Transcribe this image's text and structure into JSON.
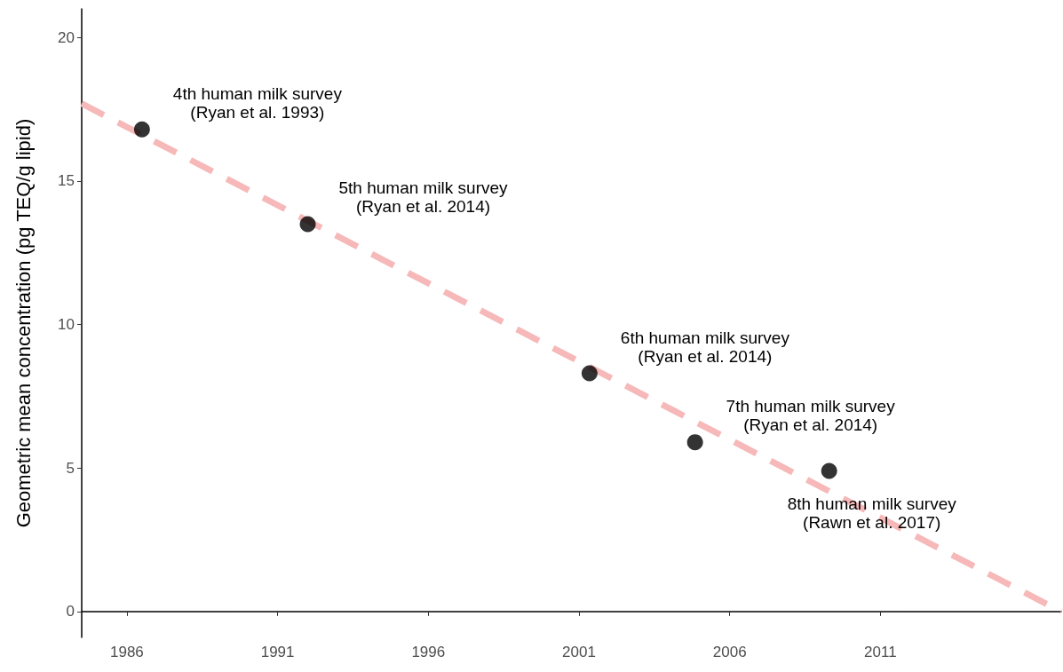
{
  "chart_data": {
    "type": "scatter",
    "ylabel": "Geometric mean concentration (pg TEQ/g lipid)",
    "series": [
      {
        "marker": "circle",
        "color": "#000000",
        "x": [
          1986.5,
          1992.0,
          2001.35,
          2004.85,
          2009.3
        ],
        "values": [
          16.8,
          13.5,
          8.3,
          5.9,
          4.9
        ]
      },
      {
        "type": "line",
        "color": "#f6b8b8",
        "line_style": "dashed",
        "x": [
          1984.5,
          2017
        ],
        "values": [
          17.7,
          0
        ]
      }
    ],
    "xlim": [
      1984.5,
      2017
    ],
    "xticks": [
      1986,
      1991,
      1996,
      2001,
      2006,
      2011
    ],
    "ylim": [
      -0.9,
      21
    ],
    "yticks": [
      0,
      5,
      10,
      15,
      20
    ],
    "grid": false,
    "annotations": [
      {
        "text": "4th human milk survey\n(Ryan et al. 1993)",
        "x": 1986.5,
        "y": 16.8
      },
      {
        "text": "5th human milk survey\n(Ryan et al. 2014)",
        "x": 1992.0,
        "y": 13.5
      },
      {
        "text": "6th human milk survey\n(Ryan et al. 2014)",
        "x": 2001.35,
        "y": 8.3
      },
      {
        "text": "7th human milk survey\n(Ryan et al. 2014)",
        "x": 2004.85,
        "y": 5.9
      },
      {
        "text": "8th human milk survey\n(Rawn et al. 2017)",
        "x": 2009.3,
        "y": 4.9
      }
    ]
  }
}
